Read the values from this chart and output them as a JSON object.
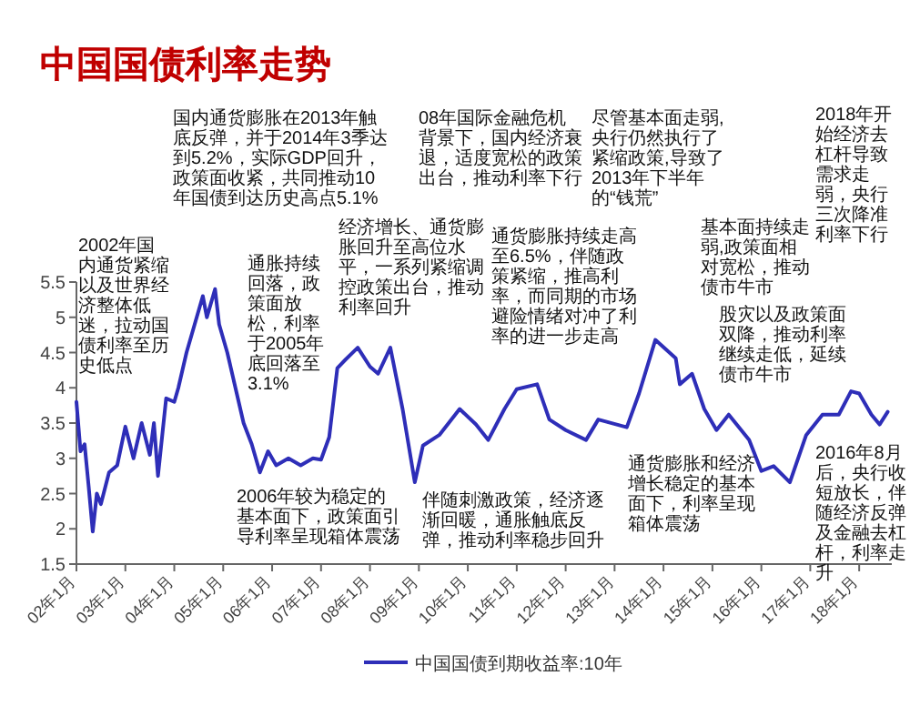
{
  "chart_data": {
    "type": "line",
    "title": "中国国债利率走势",
    "x": [
      "2002-01",
      "2002-02",
      "2002-03",
      "2002-04",
      "2002-05",
      "2002-06",
      "2002-07",
      "2002-09",
      "2002-11",
      "2003-01",
      "2003-03",
      "2003-05",
      "2003-07",
      "2003-08",
      "2003-09",
      "2003-10",
      "2003-11",
      "2004-01",
      "2004-02",
      "2004-04",
      "2004-06",
      "2004-08",
      "2004-09",
      "2004-11",
      "2004-12",
      "2005-02",
      "2005-04",
      "2005-06",
      "2005-08",
      "2005-10",
      "2005-12",
      "2006-02",
      "2006-05",
      "2006-08",
      "2006-11",
      "2007-01",
      "2007-03",
      "2007-05",
      "2007-07",
      "2007-10",
      "2008-01",
      "2008-03",
      "2008-06",
      "2008-09",
      "2008-12",
      "2009-02",
      "2009-06",
      "2009-11",
      "2010-03",
      "2010-06",
      "2010-10",
      "2011-01",
      "2011-06",
      "2011-09",
      "2012-01",
      "2012-06",
      "2012-09",
      "2013-04",
      "2013-07",
      "2013-11",
      "2014-04",
      "2014-05",
      "2014-08",
      "2014-11",
      "2015-02",
      "2015-05",
      "2015-10",
      "2016-01",
      "2016-04",
      "2016-08",
      "2016-12",
      "2017-04",
      "2017-08",
      "2017-11",
      "2018-01",
      "2018-04",
      "2018-06",
      "2018-08"
    ],
    "series": [
      {
        "name": "中国国债到期收益率:10年",
        "color": "#2e2eb8",
        "values": [
          3.8,
          3.1,
          3.2,
          2.6,
          1.96,
          2.5,
          2.35,
          2.8,
          2.9,
          3.45,
          3.0,
          3.5,
          3.05,
          3.5,
          2.75,
          3.3,
          3.85,
          3.8,
          4.0,
          4.5,
          4.9,
          5.3,
          5.0,
          5.4,
          4.9,
          4.5,
          4.0,
          3.5,
          3.2,
          2.8,
          3.1,
          2.9,
          3.0,
          2.9,
          3.0,
          2.98,
          3.3,
          4.28,
          4.4,
          4.57,
          4.3,
          4.2,
          4.57,
          3.7,
          2.66,
          3.18,
          3.33,
          3.7,
          3.48,
          3.26,
          3.7,
          3.98,
          4.05,
          3.55,
          3.4,
          3.26,
          3.55,
          3.44,
          3.92,
          4.68,
          4.42,
          4.05,
          4.2,
          3.7,
          3.4,
          3.62,
          3.26,
          2.82,
          2.89,
          2.66,
          3.33,
          3.62,
          3.62,
          3.95,
          3.92,
          3.62,
          3.48,
          3.66
        ]
      }
    ],
    "xlim": [
      "2002-01",
      "2018-09"
    ],
    "xticks": [
      {
        "value": "2002-01",
        "label": "02年1月"
      },
      {
        "value": "2003-01",
        "label": "03年1月"
      },
      {
        "value": "2004-01",
        "label": "04年1月"
      },
      {
        "value": "2005-01",
        "label": "05年1月"
      },
      {
        "value": "2006-01",
        "label": "06年1月"
      },
      {
        "value": "2007-01",
        "label": "07年1月"
      },
      {
        "value": "2008-01",
        "label": "08年1月"
      },
      {
        "value": "2009-01",
        "label": "09年1月"
      },
      {
        "value": "2010-01",
        "label": "10年1月"
      },
      {
        "value": "2011-01",
        "label": "11年1月"
      },
      {
        "value": "2012-01",
        "label": "12年1月"
      },
      {
        "value": "2013-01",
        "label": "13年1月"
      },
      {
        "value": "2014-01",
        "label": "14年1月"
      },
      {
        "value": "2015-01",
        "label": "15年1月"
      },
      {
        "value": "2016-01",
        "label": "16年1月"
      },
      {
        "value": "2017-01",
        "label": "17年1月"
      },
      {
        "value": "2018-01",
        "label": "18年1月"
      }
    ],
    "ylim": [
      1.5,
      5.5
    ],
    "yticks": [
      1.5,
      2,
      2.5,
      3,
      3.5,
      4,
      4.5,
      5,
      5.5
    ],
    "legend": "bottom",
    "annotations": [
      "国内通货膨胀在2013年触底反弹，并于2014年3季达到5.2%，实际GDP回升，政策面收紧，共同推动10年国债到达历史高点5.1%",
      "2002年国内通货紧缩以及世界经济整体低迷，拉动国债利率至历史低点",
      "通胀持续回落，政策面放松，利率于2005年底回落至3.1%",
      "2006年较为稳定的基本面下，政策面引导利率呈现箱体震荡",
      "经济增长、通货膨胀回升至高位水平，一系列紧缩调控政策出台，推动利率回升",
      "08年国际金融危机背景下，国内经济衰退，适度宽松的政策出台，推动利率下行",
      "伴随刺激政策，经济逐渐回暖，通胀触底反弹，推动利率稳步回升",
      "通货膨胀持续走高至6.5%，伴随政策紧缩，推高利率，而同期的市场避险情绪对冲了利率的进一步走高",
      "通货膨胀和经济增长稳定的基本面下，利率呈现箱体震荡",
      "尽管基本面走弱,央行仍然执行了紧缩政策,导致了2013年下半年的“钱荒”",
      "基本面持续走弱,政策面相对宽松，推动债市牛市",
      "股灾以及政策面双降，推动利率继续走低，延续债市牛市",
      "2016年8月后，央行收短放长，伴随经济反弹及金融去杠杆，利率走升",
      "2018年开始经济去杠杆导致需求走弱，央行三次降准利率下行"
    ]
  }
}
